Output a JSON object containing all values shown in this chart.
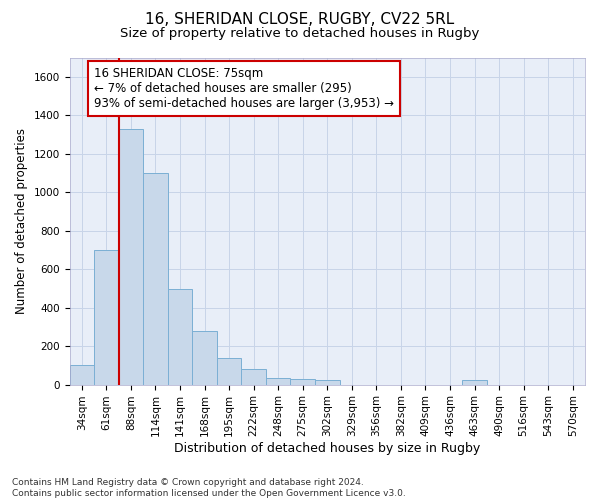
{
  "title1": "16, SHERIDAN CLOSE, RUGBY, CV22 5RL",
  "title2": "Size of property relative to detached houses in Rugby",
  "xlabel": "Distribution of detached houses by size in Rugby",
  "ylabel": "Number of detached properties",
  "categories": [
    "34sqm",
    "61sqm",
    "88sqm",
    "114sqm",
    "141sqm",
    "168sqm",
    "195sqm",
    "222sqm",
    "248sqm",
    "275sqm",
    "302sqm",
    "329sqm",
    "356sqm",
    "382sqm",
    "409sqm",
    "436sqm",
    "463sqm",
    "490sqm",
    "516sqm",
    "543sqm",
    "570sqm"
  ],
  "values": [
    100,
    700,
    1330,
    1100,
    495,
    280,
    140,
    80,
    35,
    30,
    25,
    0,
    0,
    0,
    0,
    0,
    25,
    0,
    0,
    0,
    0
  ],
  "bar_color": "#c8d8ea",
  "bar_edge_color": "#7bafd4",
  "vline_x": 1.5,
  "vline_color": "#cc0000",
  "annotation_text": "16 SHERIDAN CLOSE: 75sqm\n← 7% of detached houses are smaller (295)\n93% of semi-detached houses are larger (3,953) →",
  "annotation_box_color": "#ffffff",
  "annotation_box_edge_color": "#cc0000",
  "ylim": [
    0,
    1700
  ],
  "yticks": [
    0,
    200,
    400,
    600,
    800,
    1000,
    1200,
    1400,
    1600
  ],
  "grid_color": "#c8d4e8",
  "bg_color": "#e8eef8",
  "footer": "Contains HM Land Registry data © Crown copyright and database right 2024.\nContains public sector information licensed under the Open Government Licence v3.0.",
  "title1_fontsize": 11,
  "title2_fontsize": 9.5,
  "xlabel_fontsize": 9,
  "ylabel_fontsize": 8.5,
  "tick_fontsize": 7.5,
  "annotation_fontsize": 8.5,
  "footer_fontsize": 6.5
}
